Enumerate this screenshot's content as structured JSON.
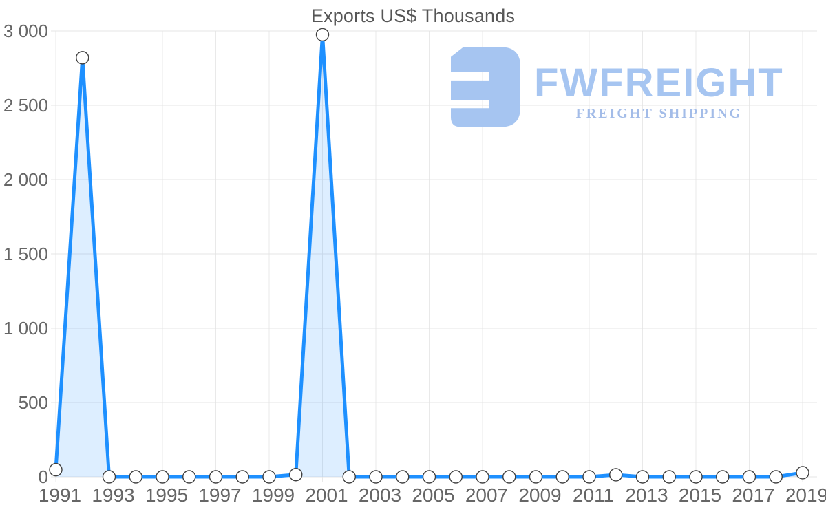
{
  "watermark": {
    "brand": "FWFREIGHT",
    "tagline": "FREIGHT SHIPPING",
    "icon": "fwfreight-logo-icon",
    "color": "#a6c5f1"
  },
  "chart_data": {
    "type": "area",
    "title": "Exports US$ Thousands",
    "x": [
      1991,
      1992,
      1993,
      1994,
      1995,
      1996,
      1997,
      1998,
      1999,
      2000,
      2001,
      2002,
      2003,
      2004,
      2005,
      2006,
      2007,
      2008,
      2009,
      2010,
      2011,
      2012,
      2013,
      2014,
      2015,
      2016,
      2017,
      2018,
      2019
    ],
    "values": [
      48,
      2820,
      0,
      0,
      0,
      0,
      0,
      0,
      0,
      15,
      2975,
      0,
      0,
      0,
      0,
      0,
      0,
      0,
      0,
      0,
      0,
      14,
      0,
      0,
      0,
      0,
      0,
      0,
      28
    ],
    "x_tick_labels": [
      "1991",
      "1993",
      "1995",
      "1997",
      "1999",
      "2001",
      "2003",
      "2005",
      "2007",
      "2009",
      "2011",
      "2013",
      "2015",
      "2017",
      "2019"
    ],
    "y_tick_values": [
      0,
      500,
      1000,
      1500,
      2000,
      2500,
      3000
    ],
    "y_tick_labels": [
      "0",
      "500",
      "1 000",
      "1 500",
      "2 000",
      "2 500",
      "3 000"
    ],
    "xlabel": "",
    "ylabel": "",
    "ylim": [
      0,
      3000
    ],
    "grid": true,
    "legend": "none",
    "line_color": "#1e90ff",
    "fill_color": "rgba(30,144,255,0.15)",
    "gridline_color": "#e4e4e4",
    "marker_fill": "#ffffff",
    "marker_stroke": "#404040"
  }
}
